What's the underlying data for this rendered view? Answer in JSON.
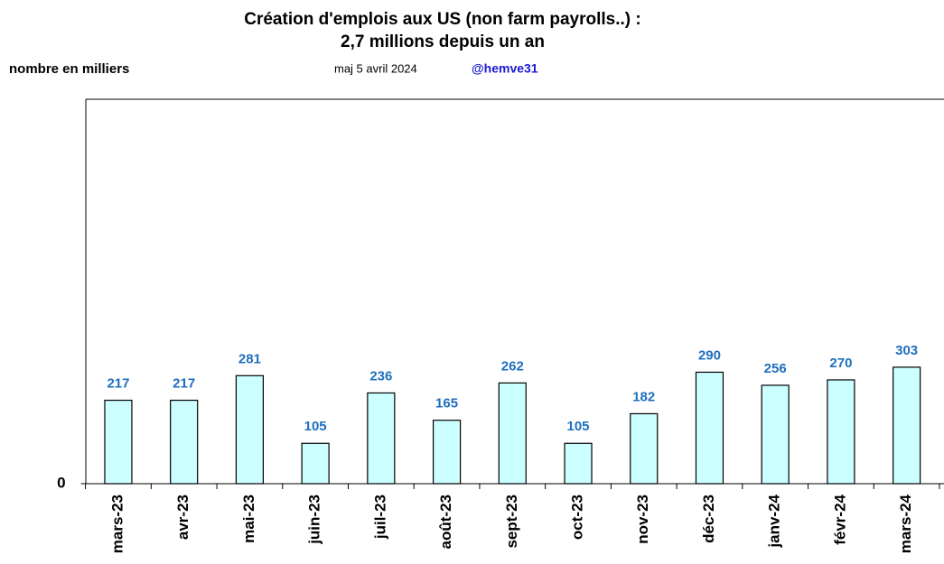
{
  "chart_data": {
    "type": "bar",
    "title": "Création d'emplois aux US (non farm payrolls..) :",
    "subtitle": "2,7 millions depuis un an",
    "y_label": "nombre en milliers",
    "annotations": [
      "maj 5 avril  2024",
      "@hemve31"
    ],
    "categories": [
      "mars-23",
      "avr-23",
      "mai-23",
      "juin-23",
      "juil-23",
      "août-23",
      "sept-23",
      "oct-23",
      "nov-23",
      "déc-23",
      "janv-24",
      "févr-24",
      "mars-24"
    ],
    "values": [
      217,
      217,
      281,
      105,
      236,
      165,
      262,
      105,
      182,
      290,
      256,
      270,
      303
    ],
    "color": "#ccffff",
    "label_color": "#1f6fbf",
    "ylim": [
      0,
      1000
    ],
    "yticks": [
      0
    ],
    "grid": false
  }
}
